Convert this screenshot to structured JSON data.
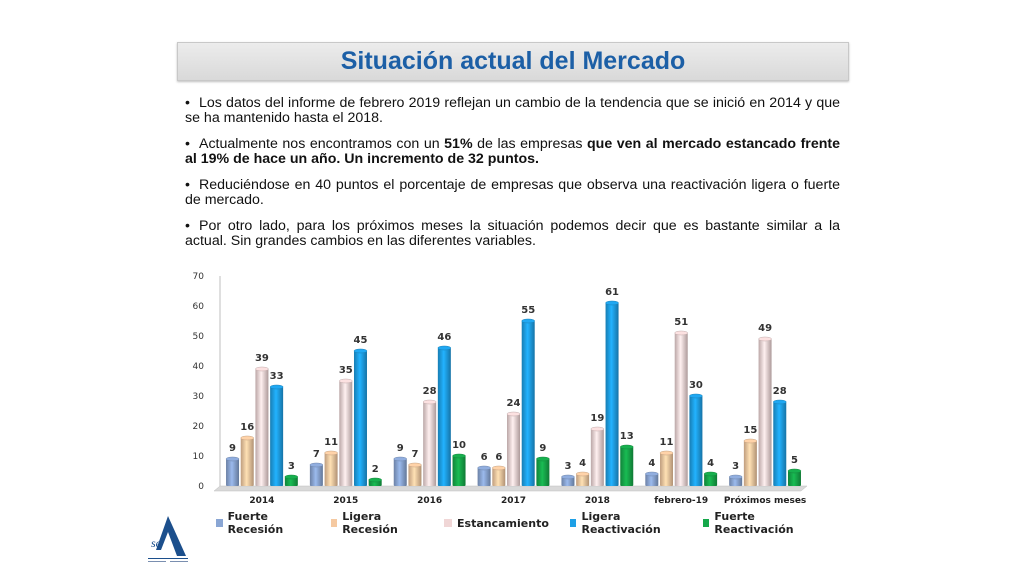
{
  "slide": {
    "title": "Situación actual del Mercado",
    "bullets": [
      {
        "segments": [
          {
            "text": "Los datos del informe de febrero 2019 reflejan un cambio de la tendencia que se inició en 2014 y que se ha mantenido hasta el 2018.",
            "bold": false
          }
        ]
      },
      {
        "segments": [
          {
            "text": "Actualmente nos encontramos con un ",
            "bold": false
          },
          {
            "text": "51%",
            "bold": true
          },
          {
            "text": " de las empresas ",
            "bold": false
          },
          {
            "text": "que ven al mercado estancado frente al 19% de hace un año. Un incremento de 32 puntos.",
            "bold": true
          }
        ]
      },
      {
        "segments": [
          {
            "text": "Reduciéndose en 40 puntos el porcentaje de empresas que observa una reactivación ligera o fuerte de mercado.",
            "bold": false
          }
        ]
      },
      {
        "segments": [
          {
            "text": "Por otro lado, para los próximos meses la situación podemos decir que es bastante similar a la actual. Sin grandes cambios en las diferentes variables.",
            "bold": false
          }
        ]
      }
    ],
    "bullet_glyph": "•"
  },
  "logo": {
    "icon": "sea-logo-icon",
    "text": "SEA",
    "color": "#1c4f8c"
  },
  "chart_data": {
    "type": "bar",
    "categories": [
      "2014",
      "2015",
      "2016",
      "2017",
      "2018",
      "febrero-19",
      "Próximos meses"
    ],
    "series": [
      {
        "name": "Fuerte Recesión",
        "color": "#8aa6d4",
        "values": [
          9,
          7,
          9,
          6,
          3,
          4,
          3
        ]
      },
      {
        "name": "Ligera Recesión",
        "color": "#f5c9a1",
        "values": [
          16,
          11,
          7,
          6,
          4,
          11,
          15
        ]
      },
      {
        "name": "Estancamiento",
        "color": "#f0d6d6",
        "values": [
          39,
          35,
          28,
          24,
          19,
          51,
          49
        ]
      },
      {
        "name": "Ligera Reactivación",
        "color": "#1ea0e6",
        "values": [
          33,
          45,
          46,
          55,
          61,
          30,
          28
        ]
      },
      {
        "name": "Fuerte Reactivación",
        "color": "#16a84a",
        "values": [
          3,
          2,
          10,
          9,
          13,
          4,
          5
        ]
      }
    ],
    "yticks": [
      0,
      10,
      20,
      30,
      40,
      50,
      60,
      70
    ],
    "ylim": [
      0,
      70
    ],
    "grid": false,
    "legend_position": "bottom",
    "data_labels": true
  }
}
